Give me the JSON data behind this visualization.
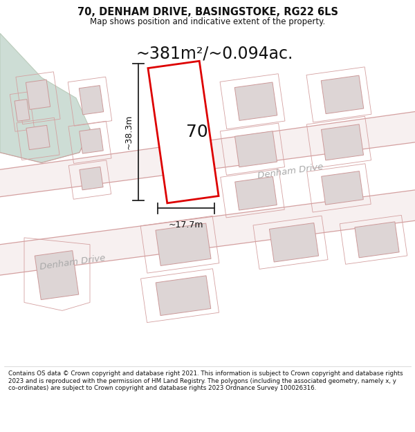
{
  "title": "70, DENHAM DRIVE, BASINGSTOKE, RG22 6LS",
  "subtitle": "Map shows position and indicative extent of the property.",
  "area_text": "~381m²/~0.094ac.",
  "label_70": "70",
  "dim_height": "~38.3m",
  "dim_width": "~17.7m",
  "road_label_upper": "Denham Drive",
  "road_label_lower": "Denham Drive",
  "footer": "Contains OS data © Crown copyright and database right 2021. This information is subject to Crown copyright and database rights 2023 and is reproduced with the permission of HM Land Registry. The polygons (including the associated geometry, namely x, y co-ordinates) are subject to Crown copyright and database rights 2023 Ordnance Survey 100026316.",
  "bg_color": "#f2eded",
  "map_white": "#ffffff",
  "road_fill": "#f7f0f0",
  "plot_red": "#e8000000",
  "plot_fill": "#ffffff",
  "building_fill": "#ddd5d5",
  "building_edge": "#cc9999",
  "green_fill": "#cdddd5",
  "green_edge": "#bbccbb",
  "dim_color": "#222222",
  "road_edge": "#d4a0a0",
  "text_dark": "#111111",
  "text_road": "#aaaaaa",
  "header_bg": "#ffffff",
  "footer_bg": "#ffffff",
  "footer_line": "#cccccc"
}
